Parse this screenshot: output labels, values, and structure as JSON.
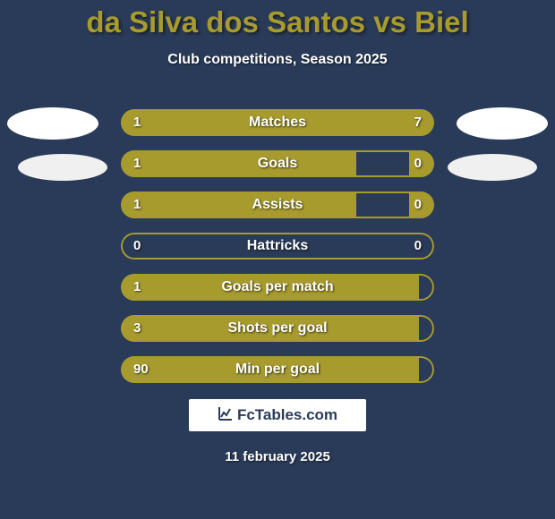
{
  "background_color": "#2a3b59",
  "accent_color": "#a79b2e",
  "title": {
    "text": "da Silva dos Santos vs Biel",
    "color": "#a79b2e",
    "fontsize": 33
  },
  "subtitle": {
    "text": "Club competitions, Season 2025",
    "color": "#ffffff",
    "fontsize": 16
  },
  "avatars": {
    "left_top_color": "#ffffff",
    "left_bot_color": "#f0f0f0",
    "right_top_color": "#ffffff",
    "right_bot_color": "#f0f0f0"
  },
  "bar_style": {
    "height": 30,
    "radius": 16,
    "gap": 16,
    "border_color": "#a79b2e",
    "fill_color": "#a79b2e",
    "label_color": "#ffffff",
    "value_color": "#ffffff",
    "label_fontsize": 16,
    "value_fontsize": 15,
    "total_width": 350
  },
  "rows": [
    {
      "label": "Matches",
      "left_val": "1",
      "right_val": "7",
      "left_pct": 12.5,
      "right_pct": 87.5
    },
    {
      "label": "Goals",
      "left_val": "1",
      "right_val": "0",
      "left_pct": 75,
      "right_pct": 8
    },
    {
      "label": "Assists",
      "left_val": "1",
      "right_val": "0",
      "left_pct": 75,
      "right_pct": 8
    },
    {
      "label": "Hattricks",
      "left_val": "0",
      "right_val": "0",
      "left_pct": 0,
      "right_pct": 0
    },
    {
      "label": "Goals per match",
      "left_val": "1",
      "right_val": "",
      "left_pct": 95,
      "right_pct": 0
    },
    {
      "label": "Shots per goal",
      "left_val": "3",
      "right_val": "",
      "left_pct": 95,
      "right_pct": 0
    },
    {
      "label": "Min per goal",
      "left_val": "90",
      "right_val": "",
      "left_pct": 95,
      "right_pct": 0
    }
  ],
  "brand": {
    "text": "FcTables.com",
    "icon": "chart-icon",
    "bg": "#ffffff",
    "text_color": "#2a3b59"
  },
  "date": "11 february 2025"
}
